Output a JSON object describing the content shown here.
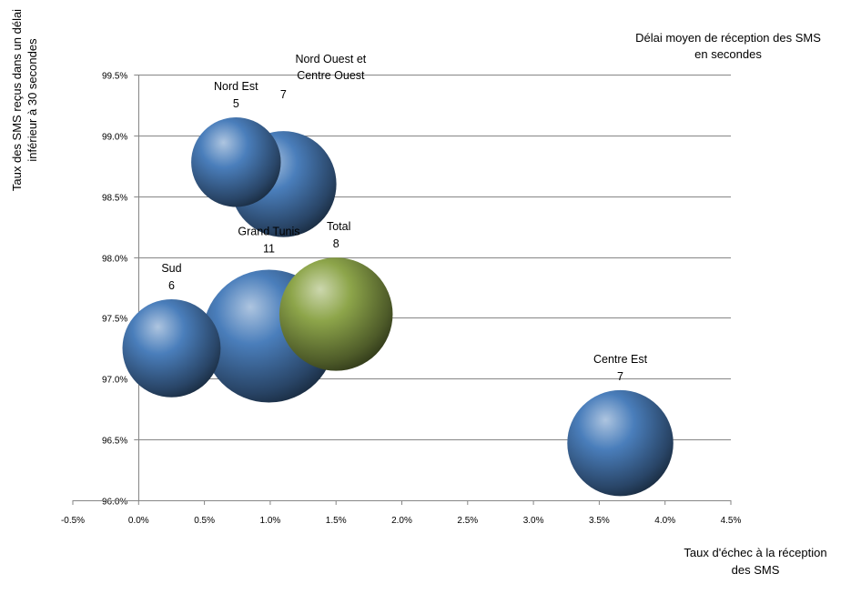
{
  "chart_data": {
    "type": "bubble",
    "size_legend_text": "Délai moyen  de réception des SMS en secondes",
    "xlabel": "Taux d'échec à la réception des SMS",
    "ylabel": "Taux des SMS reçus dans un délai inférieur à 30 secondes",
    "xlim": [
      -0.005,
      0.045
    ],
    "ylim": [
      0.96,
      0.995
    ],
    "x_ticks": [
      -0.005,
      0,
      0.005,
      0.01,
      0.015,
      0.02,
      0.025,
      0.03,
      0.035,
      0.04,
      0.045
    ],
    "x_tick_labels": [
      "-0.5%",
      "0.0%",
      "0.5%",
      "1.0%",
      "1.5%",
      "2.0%",
      "2.5%",
      "3.0%",
      "3.5%",
      "4.0%",
      "4.5%"
    ],
    "y_ticks": [
      0.96,
      0.965,
      0.97,
      0.975,
      0.98,
      0.985,
      0.99,
      0.995
    ],
    "y_tick_labels": [
      "96.0%",
      "96.5%",
      "97.0%",
      "97.5%",
      "98.0%",
      "98.5%",
      "99.0%",
      "99.5%"
    ],
    "grid": "horizontal",
    "points": [
      {
        "name": "Nord Est",
        "x": 0.0074,
        "y": 0.9878,
        "size": 5,
        "color": "#4a7ebb"
      },
      {
        "name": "Nord Ouest et Centre Ouest",
        "x": 0.011,
        "y": 0.986,
        "size": 7,
        "color": "#4a7ebb"
      },
      {
        "name": "Total",
        "x": 0.015,
        "y": 0.9753,
        "size": 8,
        "color": "#8da54a"
      },
      {
        "name": "Grand Tunis",
        "x": 0.0099,
        "y": 0.9735,
        "size": 11,
        "color": "#4a7ebb"
      },
      {
        "name": "Sud",
        "x": 0.0025,
        "y": 0.9725,
        "size": 6,
        "color": "#4a7ebb"
      },
      {
        "name": "Centre Est",
        "x": 0.0366,
        "y": 0.9647,
        "size": 7,
        "color": "#4a7ebb"
      }
    ]
  }
}
